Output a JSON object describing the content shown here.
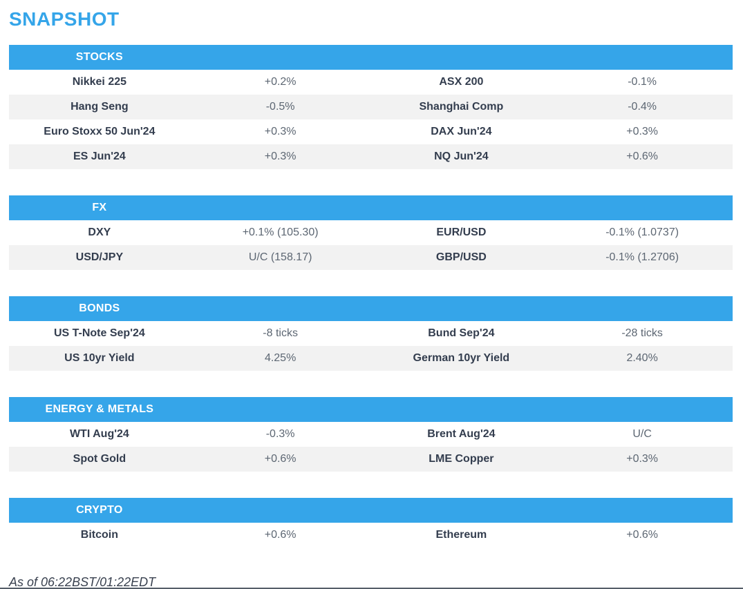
{
  "page_title": "SNAPSHOT",
  "colors": {
    "accent_blue": "#35A5E9",
    "header_text": "#FFFFFF",
    "label_text": "#333D4E",
    "value_text": "#5C6672",
    "alt_row_bg": "#F2F2F2"
  },
  "sections": [
    {
      "title": "STOCKS",
      "rows": [
        [
          "Nikkei 225",
          "+0.2%",
          "ASX 200",
          "-0.1%"
        ],
        [
          "Hang Seng",
          "-0.5%",
          "Shanghai Comp",
          "-0.4%"
        ],
        [
          "Euro Stoxx 50 Jun'24",
          "+0.3%",
          "DAX Jun'24",
          "+0.3%"
        ],
        [
          "ES Jun'24",
          "+0.3%",
          "NQ Jun'24",
          "+0.6%"
        ]
      ]
    },
    {
      "title": "FX",
      "rows": [
        [
          "DXY",
          "+0.1% (105.30)",
          "EUR/USD",
          "-0.1% (1.0737)"
        ],
        [
          "USD/JPY",
          "U/C (158.17)",
          "GBP/USD",
          "-0.1% (1.2706)"
        ]
      ]
    },
    {
      "title": "BONDS",
      "rows": [
        [
          "US T-Note Sep'24",
          "-8 ticks",
          "Bund Sep'24",
          "-28 ticks"
        ],
        [
          "US 10yr Yield",
          "4.25%",
          "German 10yr Yield",
          "2.40%"
        ]
      ]
    },
    {
      "title": "ENERGY & METALS",
      "rows": [
        [
          "WTI Aug'24",
          "-0.3%",
          "Brent Aug'24",
          "U/C"
        ],
        [
          "Spot Gold",
          "+0.6%",
          "LME Copper",
          "+0.3%"
        ]
      ]
    },
    {
      "title": "CRYPTO",
      "rows": [
        [
          "Bitcoin",
          "+0.6%",
          "Ethereum",
          "+0.6%"
        ]
      ]
    }
  ],
  "footer": {
    "as_of": "As of 06:22BST/01:22EDT"
  }
}
